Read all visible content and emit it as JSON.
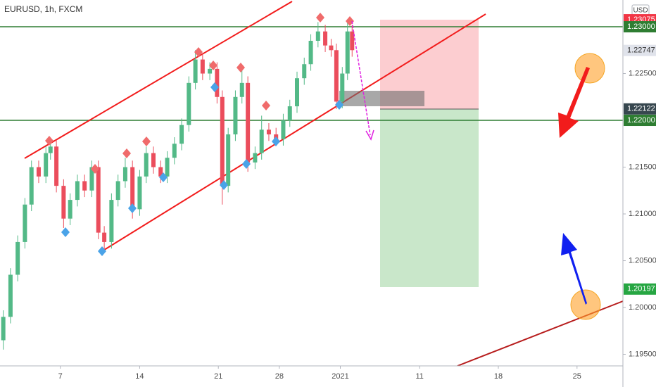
{
  "chart_data": {
    "type": "candlestick",
    "title": "EURUSD, 1h, FXCM",
    "currency": "USD",
    "up_color": "#53b987",
    "down_color": "#eb4d5c",
    "x": [
      5,
      16,
      27,
      38,
      48,
      59,
      70,
      77,
      86,
      97,
      107,
      118,
      129,
      140,
      150,
      159,
      170,
      180,
      191,
      202,
      213,
      223,
      234,
      245,
      255,
      266,
      277,
      288,
      298,
      309,
      320,
      331,
      339,
      348,
      359,
      369,
      378,
      389,
      399,
      410,
      421,
      432,
      442,
      453,
      464,
      474,
      485,
      496,
      505,
      513,
      522,
      530,
      537
    ],
    "open": [
      1.1965,
      1.199,
      1.2035,
      1.207,
      1.211,
      1.215,
      1.214,
      1.2165,
      1.2172,
      1.213,
      1.2095,
      1.2115,
      1.2135,
      1.2125,
      1.215,
      1.208,
      1.207,
      1.2115,
      1.2135,
      1.215,
      1.2105,
      1.214,
      1.2165,
      1.215,
      1.214,
      1.216,
      1.2175,
      1.2195,
      1.224,
      1.2265,
      1.225,
      1.2255,
      1.2225,
      1.213,
      1.2185,
      1.2225,
      1.224,
      1.2155,
      1.2165,
      1.219,
      1.2185,
      1.218,
      1.22,
      1.2215,
      1.2245,
      1.226,
      1.2285,
      1.2295,
      1.228,
      1.2275,
      1.222,
      1.225,
      1.2295
    ],
    "high": [
      1.1997,
      1.2042,
      1.2077,
      1.2117,
      1.2157,
      1.2157,
      1.2172,
      1.2179,
      1.2179,
      1.2137,
      1.2122,
      1.2142,
      1.2142,
      1.2157,
      1.2157,
      1.2087,
      1.2122,
      1.2142,
      1.216,
      1.2157,
      1.2147,
      1.2172,
      1.2172,
      1.2157,
      1.2167,
      1.2182,
      1.2202,
      1.2247,
      1.2275,
      1.2272,
      1.2262,
      1.2262,
      1.2232,
      1.2192,
      1.2232,
      1.2255,
      1.2247,
      1.2172,
      1.2205,
      1.2197,
      1.2192,
      1.2207,
      1.2222,
      1.2252,
      1.2267,
      1.2292,
      1.2305,
      1.2302,
      1.2287,
      1.2282,
      1.2257,
      1.2305,
      1.2302
    ],
    "low": [
      1.1955,
      1.1983,
      1.2028,
      1.2063,
      1.2103,
      1.2133,
      1.2133,
      1.2158,
      1.2123,
      1.2085,
      1.2088,
      1.2108,
      1.2118,
      1.2118,
      1.2073,
      1.206,
      1.2063,
      1.2108,
      1.2128,
      1.2095,
      1.2098,
      1.2133,
      1.2143,
      1.2133,
      1.2133,
      1.2153,
      1.2168,
      1.2188,
      1.2233,
      1.2243,
      1.2243,
      1.2218,
      1.211,
      1.2123,
      1.2178,
      1.2218,
      1.2145,
      1.2148,
      1.2158,
      1.2178,
      1.2173,
      1.2173,
      1.2193,
      1.2208,
      1.2238,
      1.2253,
      1.2278,
      1.2273,
      1.2268,
      1.2212,
      1.2213,
      1.2243,
      1.2268
    ],
    "close": [
      1.199,
      1.2035,
      1.207,
      1.211,
      1.215,
      1.214,
      1.2165,
      1.2172,
      1.213,
      1.2095,
      1.2115,
      1.2135,
      1.2125,
      1.215,
      1.208,
      1.207,
      1.2115,
      1.2135,
      1.215,
      1.2105,
      1.214,
      1.2165,
      1.215,
      1.214,
      1.216,
      1.2175,
      1.2195,
      1.224,
      1.2265,
      1.225,
      1.2255,
      1.2225,
      1.213,
      1.2185,
      1.2225,
      1.224,
      1.2155,
      1.2165,
      1.219,
      1.2185,
      1.218,
      1.22,
      1.2215,
      1.2245,
      1.226,
      1.2285,
      1.2295,
      1.228,
      1.2275,
      1.222,
      1.225,
      1.2295,
      1.2275
    ],
    "xlim": [
      0,
      950
    ],
    "xticks": [
      {
        "value": 92,
        "label": "7"
      },
      {
        "value": 213,
        "label": "14"
      },
      {
        "value": 333,
        "label": "21"
      },
      {
        "value": 426,
        "label": "28"
      },
      {
        "value": 519,
        "label": "2021"
      },
      {
        "value": 640,
        "label": "11"
      },
      {
        "value": 760,
        "label": "18"
      },
      {
        "value": 880,
        "label": "25"
      }
    ],
    "ylim": [
      1.19376,
      1.23286
    ],
    "yticks": [
      {
        "value": 1.225,
        "label": "1.22500"
      },
      {
        "value": 1.215,
        "label": "1.21500"
      },
      {
        "value": 1.21,
        "label": "1.21000"
      },
      {
        "value": 1.205,
        "label": "1.20500"
      },
      {
        "value": 1.2,
        "label": "1.20000"
      },
      {
        "value": 1.195,
        "label": "1.19500"
      }
    ],
    "price_tags": [
      {
        "value": 1.23075,
        "label": "1.23075",
        "color": "#f23645"
      },
      {
        "value": 1.23,
        "label": "1.23000",
        "color": "#2e7d32"
      },
      {
        "value": 1.22747,
        "label": "1.22747",
        "color": "#e0e3eb"
      },
      {
        "value": 1.22122,
        "label": "1.22122",
        "color": "#37474f"
      },
      {
        "value": 1.22,
        "label": "1.22000",
        "color": "#2e7d32"
      },
      {
        "value": 1.20197,
        "label": "1.20197",
        "color": "#26a642"
      }
    ]
  }
}
